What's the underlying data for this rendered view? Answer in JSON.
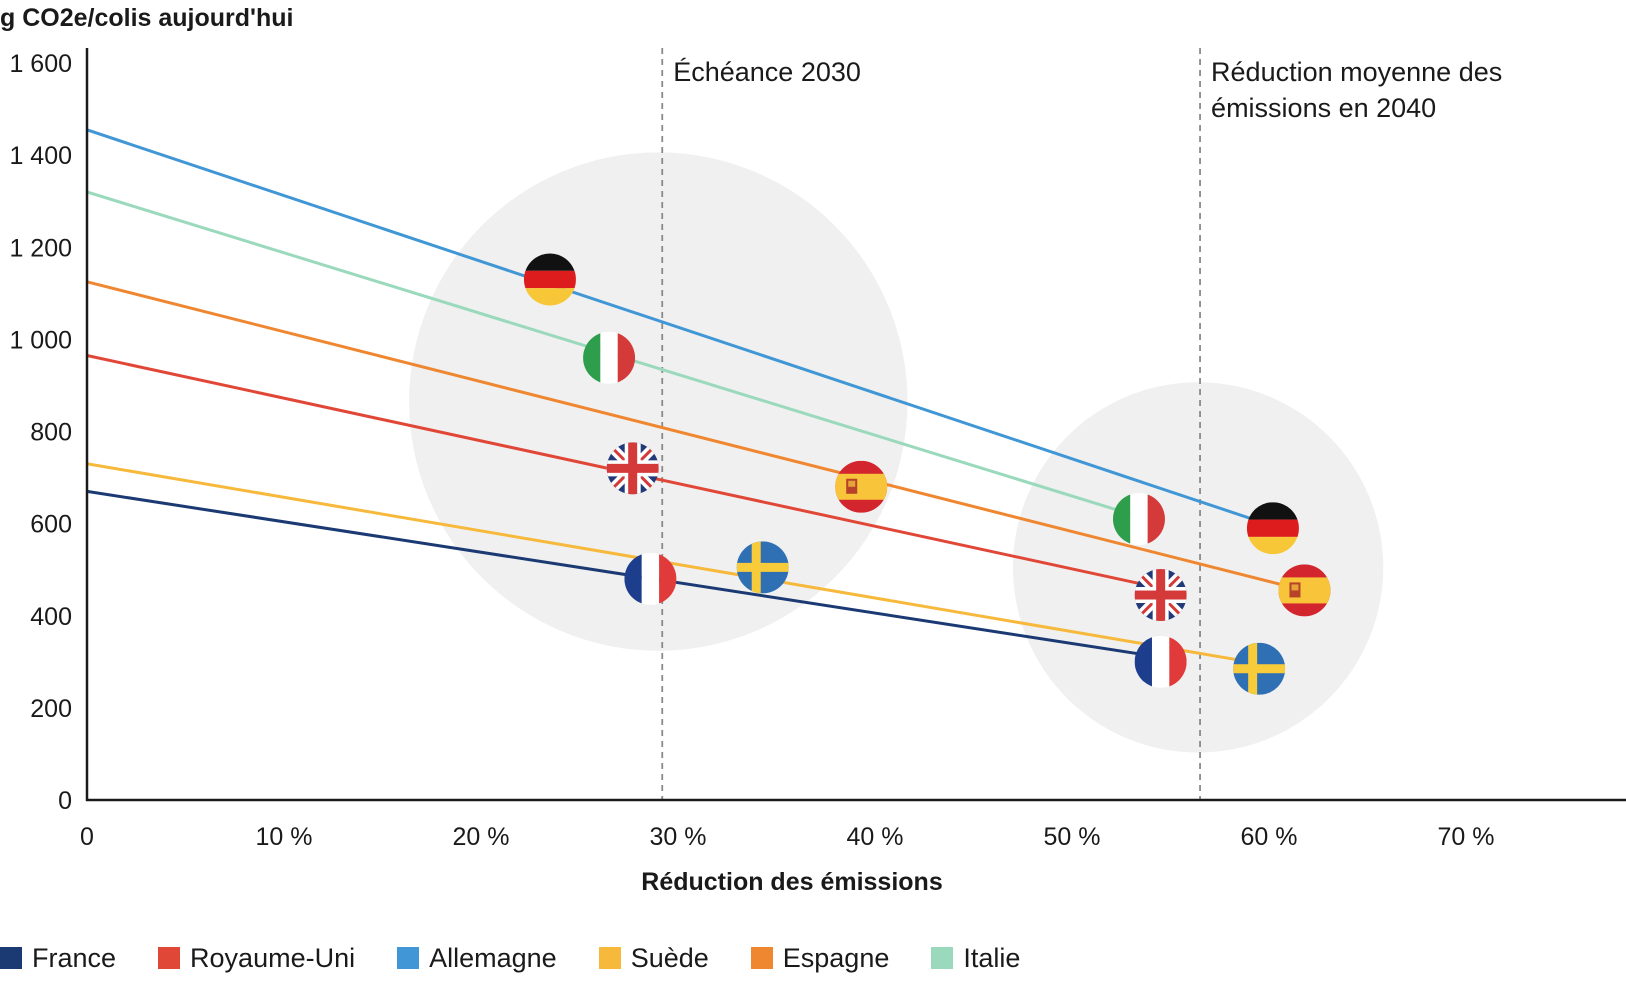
{
  "chart_data": {
    "type": "line",
    "title": "",
    "ylabel": "g CO2e/colis aujourd'hui",
    "xlabel": "Réduction des émissions",
    "xlim": [
      0,
      78
    ],
    "ylim": [
      0,
      1600
    ],
    "x_ticks": [
      {
        "value": 0,
        "label": "0"
      },
      {
        "value": 10,
        "label": "10 %"
      },
      {
        "value": 20,
        "label": "20 %"
      },
      {
        "value": 30,
        "label": "30 %"
      },
      {
        "value": 40,
        "label": "40 %"
      },
      {
        "value": 50,
        "label": "50 %"
      },
      {
        "value": 60,
        "label": "60 %"
      },
      {
        "value": 70,
        "label": "70 %"
      }
    ],
    "y_ticks": [
      {
        "value": 0,
        "label": "0"
      },
      {
        "value": 200,
        "label": "200"
      },
      {
        "value": 400,
        "label": "400"
      },
      {
        "value": 600,
        "label": "600"
      },
      {
        "value": 800,
        "label": "800"
      },
      {
        "value": 1000,
        "label": "1 000"
      },
      {
        "value": 1200,
        "label": "1 200"
      },
      {
        "value": 1400,
        "label": "1 400"
      },
      {
        "value": 1600,
        "label": "1 600"
      }
    ],
    "grid": false,
    "legend_position": "bottom-left",
    "series": [
      {
        "name": "France",
        "color": "#1b3a73",
        "flag": "france-flag-icon",
        "start": [
          0,
          670
        ],
        "end": [
          54.5,
          310
        ],
        "markers": [
          [
            28.6,
            480
          ],
          [
            54.5,
            300
          ]
        ]
      },
      {
        "name": "Royaume-Uni",
        "color": "#e04737",
        "flag": "united-kingdom-flag-icon",
        "start": [
          0,
          965
        ],
        "end": [
          54.5,
          460
        ],
        "markers": [
          [
            27.7,
            720
          ],
          [
            54.5,
            445
          ]
        ]
      },
      {
        "name": "Allemagne",
        "color": "#4197d5",
        "flag": "germany-flag-icon",
        "start": [
          0,
          1455
        ],
        "end": [
          60.2,
          595
        ],
        "markers": [
          [
            23.5,
            1130
          ],
          [
            60.2,
            590
          ]
        ]
      },
      {
        "name": "Suède",
        "color": "#f7b93b",
        "flag": "sweden-flag-icon",
        "start": [
          0,
          730
        ],
        "end": [
          59,
          300
        ],
        "markers": [
          [
            34.3,
            505
          ],
          [
            59.5,
            285
          ]
        ]
      },
      {
        "name": "Espagne",
        "color": "#ef8731",
        "flag": "spain-flag-icon",
        "start": [
          0,
          1125
        ],
        "end": [
          61.8,
          455
        ],
        "markers": [
          [
            39.3,
            680
          ],
          [
            61.8,
            455
          ]
        ]
      },
      {
        "name": "Italie",
        "color": "#9ad9bc",
        "flag": "italy-flag-icon",
        "start": [
          0,
          1320
        ],
        "end": [
          53.4,
          615
        ],
        "markers": [
          [
            26.5,
            960
          ],
          [
            53.4,
            610
          ]
        ]
      }
    ],
    "annotations": [
      {
        "x": 29.2,
        "lines": [
          "Échéance 2030"
        ]
      },
      {
        "x": 56.5,
        "lines": [
          "Réduction moyenne des",
          "émissions en 2040"
        ]
      }
    ],
    "highlight_regions": [
      {
        "cx": 29,
        "cy": 865,
        "r_x_units": 12.65
      },
      {
        "cx": 56.4,
        "cy": 505,
        "r_x_units": 9.4
      }
    ]
  }
}
